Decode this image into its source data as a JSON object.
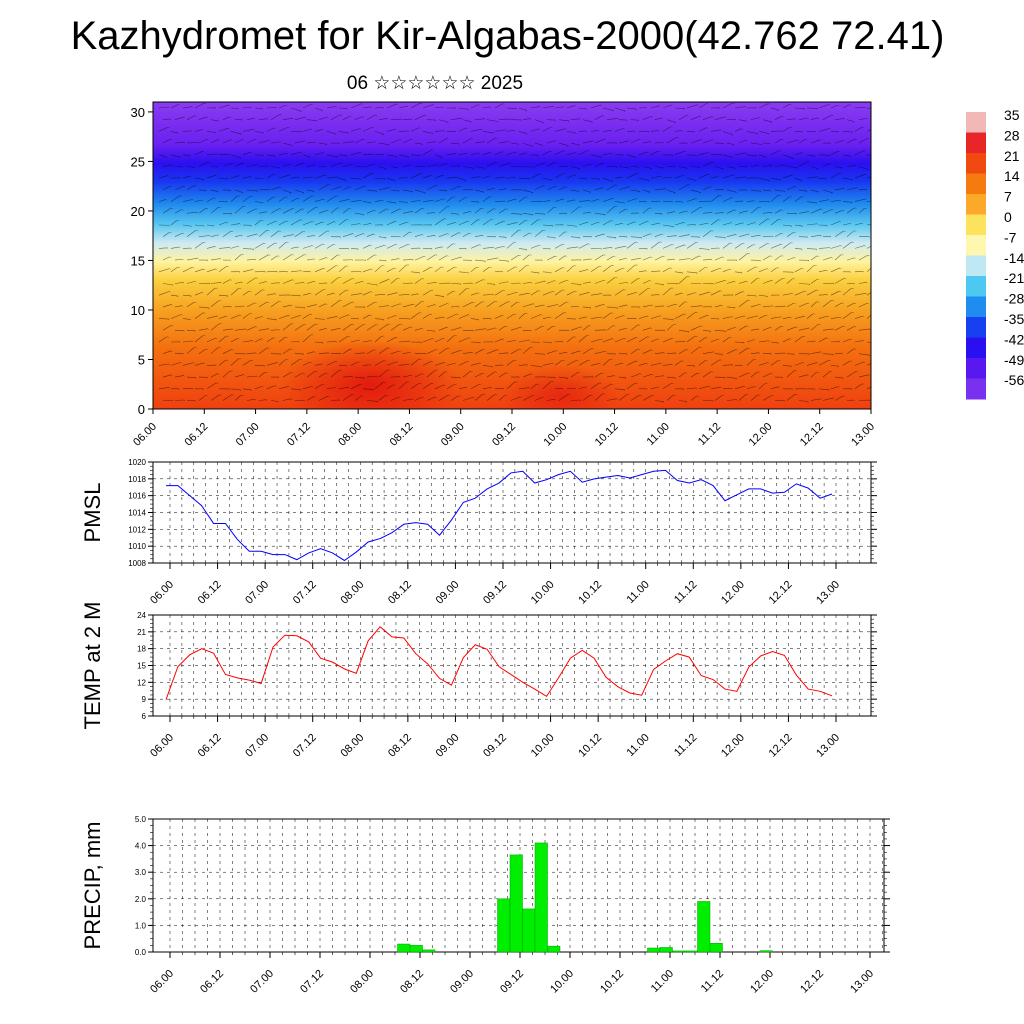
{
  "title": "Kazhydromet for Kir-Algabas-2000(42.762 72.41)",
  "subtitle": "06 ☆☆☆☆☆☆ 2025",
  "colors": {
    "pmsl_line": "#0000ff",
    "temp_line": "#ff0000",
    "precip_bar": "#00ee00"
  },
  "chart_data": [
    {
      "type": "heatmap",
      "name": "vertical-section",
      "xlabel": "",
      "ylabel": "",
      "x_ticks": [
        "06.00",
        "06.12",
        "07.00",
        "07.12",
        "08.00",
        "08.12",
        "09.00",
        "09.12",
        "10.00",
        "10.12",
        "11.00",
        "11.12",
        "12.00",
        "12.12",
        "13.00"
      ],
      "y_ticks": [
        "0",
        "5",
        "10",
        "15",
        "20",
        "25",
        "30"
      ],
      "ylim": [
        0,
        31
      ],
      "colorbar": {
        "labels": [
          "35",
          "28",
          "21",
          "14",
          "7",
          "0",
          "-7",
          "-14",
          "-21",
          "-28",
          "-35",
          "-42",
          "-49",
          "-56"
        ],
        "colors": [
          "#f2b8b8",
          "#e8262a",
          "#f04a10",
          "#f67a10",
          "#fca82a",
          "#fde25e",
          "#fff7b0",
          "#bfe8f5",
          "#4cc8f2",
          "#1e8cf0",
          "#1840f0",
          "#2a10f0",
          "#5a18f0",
          "#7a30f0"
        ]
      }
    },
    {
      "type": "line",
      "name": "pmsl",
      "ylabel": "PMSL",
      "ylim": [
        1008,
        1020
      ],
      "y_ticks": [
        "1008",
        "1010",
        "1012",
        "1014",
        "1016",
        "1018",
        "1020"
      ],
      "x_ticks": [
        "06.00",
        "06.12",
        "07.00",
        "07.12",
        "08.00",
        "08.12",
        "09.00",
        "09.12",
        "10.00",
        "10.12",
        "11.00",
        "11.12",
        "12.00",
        "12.12",
        "13.00"
      ],
      "x_step_hours": 3,
      "values": [
        1017.2,
        1017.2,
        1016.0,
        1014.8,
        1012.7,
        1012.7,
        1010.8,
        1009.4,
        1009.4,
        1009.0,
        1009.0,
        1008.4,
        1009.2,
        1009.7,
        1009.2,
        1008.3,
        1009.3,
        1010.5,
        1010.9,
        1011.6,
        1012.6,
        1012.8,
        1012.6,
        1011.3,
        1013.1,
        1015.2,
        1015.7,
        1016.8,
        1017.5,
        1018.7,
        1018.9,
        1017.5,
        1017.9,
        1018.5,
        1018.9,
        1017.6,
        1018.0,
        1018.2,
        1018.4,
        1018.1,
        1018.5,
        1018.9,
        1019.0,
        1017.8,
        1017.5,
        1017.9,
        1017.2,
        1015.4,
        1016.1,
        1016.8,
        1016.8,
        1016.3,
        1016.4,
        1017.4,
        1016.9,
        1015.7,
        1016.2
      ]
    },
    {
      "type": "line",
      "name": "temp",
      "ylabel": "TEMP at 2 M",
      "ylim": [
        6,
        24
      ],
      "y_ticks": [
        "6",
        "9",
        "12",
        "15",
        "18",
        "21",
        "24"
      ],
      "x_ticks": [
        "06.00",
        "06.12",
        "07.00",
        "07.12",
        "08.00",
        "08.12",
        "09.00",
        "09.12",
        "10.00",
        "10.12",
        "11.00",
        "11.12",
        "12.00",
        "12.12",
        "13.00"
      ],
      "x_step_hours": 3,
      "values": [
        8.9,
        14.8,
        16.9,
        18.0,
        17.2,
        13.4,
        12.8,
        12.4,
        11.8,
        18.3,
        20.4,
        20.3,
        19.2,
        16.3,
        15.6,
        14.4,
        13.6,
        19.4,
        21.9,
        20.1,
        19.9,
        17.1,
        15.3,
        12.7,
        11.5,
        16.4,
        18.7,
        17.9,
        14.8,
        13.4,
        12.0,
        10.8,
        9.5,
        12.8,
        16.3,
        17.7,
        16.3,
        12.9,
        11.2,
        10.1,
        9.7,
        14.3,
        15.8,
        17.1,
        16.5,
        13.2,
        12.5,
        10.8,
        10.4,
        14.7,
        16.7,
        17.5,
        16.8,
        13.3,
        10.8,
        10.4,
        9.6
      ]
    },
    {
      "type": "bar",
      "name": "precip",
      "ylabel": "PRECIP, mm",
      "ylim": [
        0,
        5
      ],
      "y_ticks": [
        "0.0",
        "1.0",
        "2.0",
        "3.0",
        "4.0",
        "5.0"
      ],
      "x_ticks": [
        "06.00",
        "06.12",
        "07.00",
        "07.12",
        "08.00",
        "08.12",
        "09.00",
        "09.12",
        "10.00",
        "10.12",
        "11.00",
        "11.12",
        "12.00",
        "12.12",
        "13.00"
      ],
      "x_step_hours": 3,
      "values": [
        0,
        0,
        0,
        0,
        0,
        0,
        0,
        0,
        0,
        0,
        0,
        0,
        0,
        0,
        0,
        0,
        0,
        0,
        0,
        0.3,
        0.25,
        0.08,
        0,
        0,
        0,
        0,
        0,
        2.0,
        3.65,
        1.62,
        4.1,
        0.22,
        0,
        0,
        0,
        0,
        0,
        0,
        0,
        0.15,
        0.17,
        0.04,
        0.04,
        1.9,
        0.33,
        0,
        0,
        0,
        0.05,
        0,
        0,
        0,
        0,
        0,
        0,
        0,
        0
      ]
    }
  ]
}
